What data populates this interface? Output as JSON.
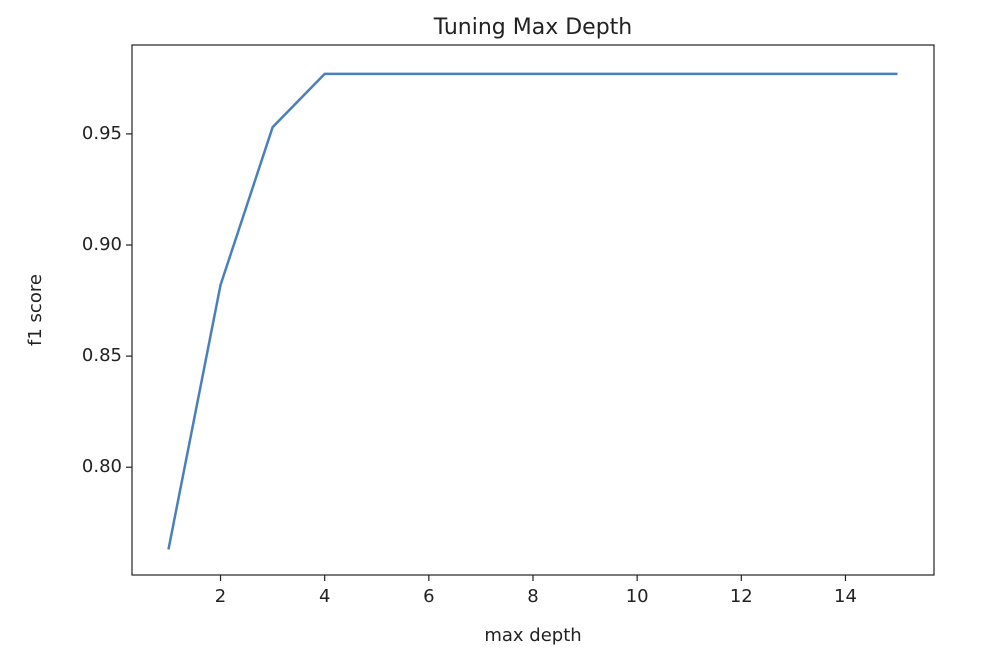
{
  "chart_data": {
    "type": "line",
    "title": "Tuning Max Depth",
    "xlabel": "max depth",
    "ylabel": "f1 score",
    "x": [
      1,
      2,
      3,
      4,
      5,
      6,
      7,
      8,
      9,
      10,
      11,
      12,
      13,
      14,
      15
    ],
    "series": [
      {
        "color": "#4a7fbd",
        "values": [
          0.763,
          0.882,
          0.953,
          0.977,
          0.977,
          0.977,
          0.977,
          0.977,
          0.977,
          0.977,
          0.977,
          0.977,
          0.977,
          0.977,
          0.977
        ]
      }
    ],
    "xlim": [
      0.3,
      15.7
    ],
    "xticks": [
      2,
      4,
      6,
      8,
      10,
      12,
      14
    ],
    "ylim": [
      0.7515,
      0.99
    ],
    "yticks": [
      {
        "value": 0.8,
        "label": "0.80"
      },
      0.85,
      {
        "value": 0.9,
        "label": "0.90"
      },
      0.95
    ],
    "grid": false
  }
}
